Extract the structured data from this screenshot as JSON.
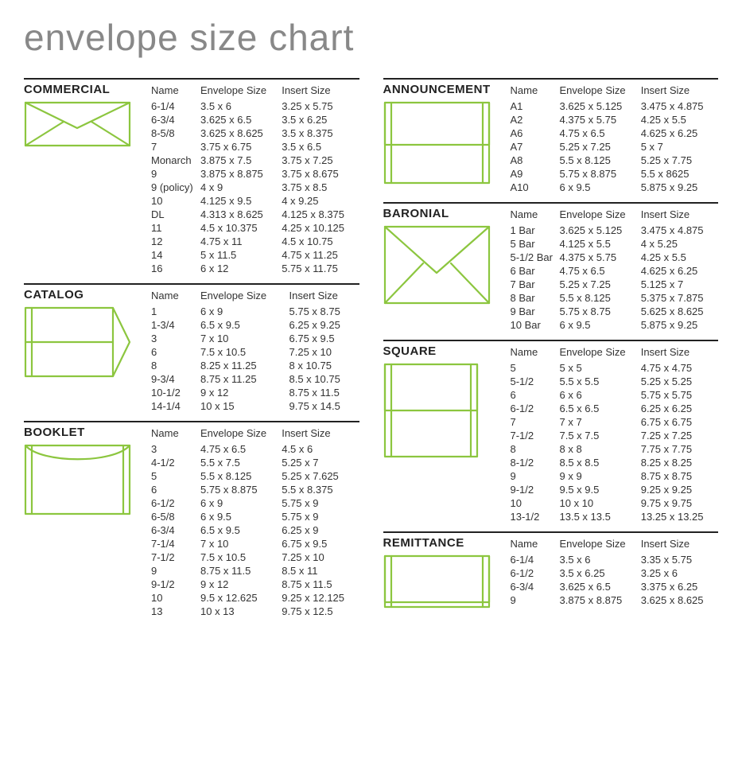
{
  "title": "envelope size chart",
  "headers": {
    "name": "Name",
    "env": "Envelope Size",
    "ins": "Insert Size"
  },
  "accent_color": "#8cc63f",
  "left": [
    {
      "label": "COMMERCIAL",
      "icon": "commercial",
      "rows": [
        {
          "n": "6-1/4",
          "e": "3.5 x 6",
          "i": "3.25 x 5.75"
        },
        {
          "n": "6-3/4",
          "e": "3.625 x 6.5",
          "i": "3.5 x 6.25"
        },
        {
          "n": "8-5/8",
          "e": "3.625 x 8.625",
          "i": "3.5 x 8.375"
        },
        {
          "n": "7",
          "e": "3.75 x 6.75",
          "i": "3.5 x 6.5"
        },
        {
          "n": "Monarch",
          "e": "3.875 x 7.5",
          "i": "3.75 x 7.25"
        },
        {
          "n": "9",
          "e": "3.875 x 8.875",
          "i": "3.75 x 8.675"
        },
        {
          "n": "9 (policy)",
          "e": "4 x 9",
          "i": "3.75 x 8.5"
        },
        {
          "n": "10",
          "e": "4.125 x 9.5",
          "i": "4 x 9.25"
        },
        {
          "n": "DL",
          "e": "4.313 x 8.625",
          "i": "4.125 x 8.375"
        },
        {
          "n": "11",
          "e": "4.5 x 10.375",
          "i": "4.25 x 10.125"
        },
        {
          "n": "12",
          "e": "4.75 x 11",
          "i": "4.5 x 10.75"
        },
        {
          "n": "14",
          "e": "5 x 11.5",
          "i": "4.75 x 11.25"
        },
        {
          "n": "16",
          "e": "6 x 12",
          "i": "5.75 x 11.75"
        }
      ]
    },
    {
      "label": "CATALOG",
      "icon": "catalog",
      "rows": [
        {
          "n": "1",
          "e": "6 x 9",
          "i": "5.75 x 8.75"
        },
        {
          "n": "1-3/4",
          "e": "6.5 x 9.5",
          "i": "6.25 x 9.25"
        },
        {
          "n": "3",
          "e": "7 x 10",
          "i": "6.75 x 9.5"
        },
        {
          "n": "6",
          "e": "7.5 x 10.5",
          "i": "7.25 x 10"
        },
        {
          "n": "8",
          "e": "8.25 x 11.25",
          "i": "8 x 10.75"
        },
        {
          "n": "9-3/4",
          "e": "8.75 x 11.25",
          "i": "8.5 x 10.75"
        },
        {
          "n": "10-1/2",
          "e": "9 x 12",
          "i": "8.75 x 11.5"
        },
        {
          "n": "14-1/4",
          "e": "10 x 15",
          "i": "9.75 x 14.5"
        }
      ]
    },
    {
      "label": "BOOKLET",
      "icon": "booklet",
      "rows": [
        {
          "n": "3",
          "e": "4.75 x 6.5",
          "i": "4.5 x 6"
        },
        {
          "n": "4-1/2",
          "e": "5.5 x 7.5",
          "i": "5.25 x 7"
        },
        {
          "n": "5",
          "e": "5.5 x 8.125",
          "i": "5.25 x 7.625"
        },
        {
          "n": "6",
          "e": "5.75 x 8.875",
          "i": "5.5 x 8.375"
        },
        {
          "n": "6-1/2",
          "e": "6 x 9",
          "i": "5.75 x 9"
        },
        {
          "n": "6-5/8",
          "e": "6 x 9.5",
          "i": "5.75 x 9"
        },
        {
          "n": "6-3/4",
          "e": "6.5 x 9.5",
          "i": "6.25 x 9"
        },
        {
          "n": "7-1/4",
          "e": "7 x 10",
          "i": "6.75 x 9.5"
        },
        {
          "n": "7-1/2",
          "e": "7.5 x 10.5",
          "i": "7.25 x 10"
        },
        {
          "n": "9",
          "e": "8.75 x 11.5",
          "i": "8.5 x 11"
        },
        {
          "n": "9-1/2",
          "e": "9 x 12",
          "i": "8.75 x 11.5"
        },
        {
          "n": "10",
          "e": "9.5 x 12.625",
          "i": "9.25 x 12.125"
        },
        {
          "n": "13",
          "e": "10 x 13",
          "i": "9.75 x 12.5"
        }
      ]
    }
  ],
  "right": [
    {
      "label": "ANNOUNCEMENT",
      "icon": "announcement",
      "rows": [
        {
          "n": "A1",
          "e": "3.625 x 5.125",
          "i": "3.475 x 4.875"
        },
        {
          "n": "A2",
          "e": "4.375 x 5.75",
          "i": "4.25 x 5.5"
        },
        {
          "n": "A6",
          "e": "4.75 x 6.5",
          "i": "4.625 x 6.25"
        },
        {
          "n": "A7",
          "e": "5.25 x 7.25",
          "i": "5 x 7"
        },
        {
          "n": "A8",
          "e": "5.5 x 8.125",
          "i": "5.25 x 7.75"
        },
        {
          "n": "A9",
          "e": "5.75 x 8.875",
          "i": "5.5 x 8625"
        },
        {
          "n": "A10",
          "e": "6 x 9.5",
          "i": "5.875 x 9.25"
        }
      ]
    },
    {
      "label": "BARONIAL",
      "icon": "baronial",
      "rows": [
        {
          "n": "1 Bar",
          "e": "3.625 x 5.125",
          "i": "3.475 x 4.875"
        },
        {
          "n": "5 Bar",
          "e": "4.125 x 5.5",
          "i": "4 x 5.25"
        },
        {
          "n": "5-1/2 Bar",
          "e": "4.375 x 5.75",
          "i": "4.25 x 5.5"
        },
        {
          "n": "6 Bar",
          "e": "4.75 x 6.5",
          "i": "4.625 x 6.25"
        },
        {
          "n": "7 Bar",
          "e": "5.25 x 7.25",
          "i": "5.125 x 7"
        },
        {
          "n": "8 Bar",
          "e": "5.5 x 8.125",
          "i": "5.375 x 7.875"
        },
        {
          "n": "9 Bar",
          "e": "5.75 x 8.75",
          "i": "5.625 x 8.625"
        },
        {
          "n": "10 Bar",
          "e": "6 x 9.5",
          "i": "5.875 x 9.25"
        }
      ]
    },
    {
      "label": "SQUARE",
      "icon": "square",
      "rows": [
        {
          "n": "5",
          "e": "5 x 5",
          "i": "4.75 x 4.75"
        },
        {
          "n": "5-1/2",
          "e": "5.5 x 5.5",
          "i": "5.25 x 5.25"
        },
        {
          "n": "6",
          "e": "6 x 6",
          "i": "5.75 x 5.75"
        },
        {
          "n": "6-1/2",
          "e": "6.5 x 6.5",
          "i": "6.25 x 6.25"
        },
        {
          "n": "7",
          "e": "7 x 7",
          "i": "6.75 x 6.75"
        },
        {
          "n": "7-1/2",
          "e": "7.5 x 7.5",
          "i": "7.25 x 7.25"
        },
        {
          "n": "8",
          "e": "8 x 8",
          "i": "7.75 x 7.75"
        },
        {
          "n": "8-1/2",
          "e": "8.5 x 8.5",
          "i": "8.25 x 8.25"
        },
        {
          "n": "9",
          "e": "9 x 9",
          "i": "8.75 x 8.75"
        },
        {
          "n": "9-1/2",
          "e": "9.5 x 9.5",
          "i": "9.25 x 9.25"
        },
        {
          "n": "10",
          "e": "10 x 10",
          "i": "9.75 x 9.75"
        },
        {
          "n": "13-1/2",
          "e": "13.5 x 13.5",
          "i": "13.25 x 13.25"
        }
      ]
    },
    {
      "label": "REMITTANCE",
      "icon": "remittance",
      "rows": [
        {
          "n": "6-1/4",
          "e": "3.5 x 6",
          "i": "3.35 x 5.75"
        },
        {
          "n": "6-1/2",
          "e": "3.5 x 6.25",
          "i": "3.25 x 6"
        },
        {
          "n": "6-3/4",
          "e": "3.625 x 6.5",
          "i": "3.375 x 6.25"
        },
        {
          "n": "9",
          "e": "3.875 x 8.875",
          "i": "3.625 x 8.625"
        }
      ]
    }
  ]
}
